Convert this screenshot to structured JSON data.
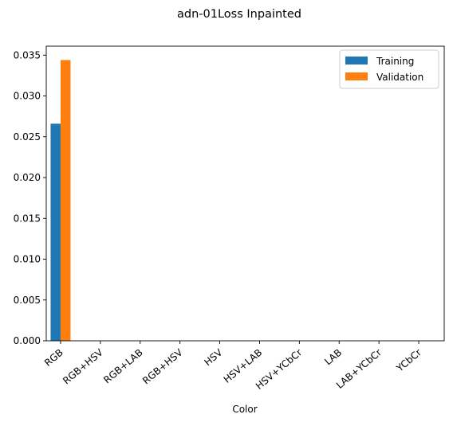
{
  "chart_data": {
    "type": "bar",
    "title": "adn-01Loss Inpainted",
    "xlabel": "Color",
    "ylabel": "",
    "categories": [
      "RGB",
      "RGB+HSV",
      "RGB+LAB",
      "RGB+HSV",
      "HSV",
      "HSV+LAB",
      "HSV+YCbCr",
      "LAB",
      "LAB+YCbCr",
      "YCbCr"
    ],
    "series": [
      {
        "name": "Training",
        "color": "#1f77b4",
        "values": [
          0.0266,
          0,
          0,
          0,
          0,
          0,
          0,
          0,
          0,
          0
        ]
      },
      {
        "name": "Validation",
        "color": "#ff7f0e",
        "values": [
          0.0344,
          0,
          0,
          0,
          0,
          0,
          0,
          0,
          0,
          0
        ]
      }
    ],
    "ylim": [
      0,
      0.0361
    ],
    "yticks": [
      "0.000",
      "0.005",
      "0.010",
      "0.015",
      "0.020",
      "0.025",
      "0.030",
      "0.035"
    ],
    "legend": "top-right",
    "grid": false
  }
}
